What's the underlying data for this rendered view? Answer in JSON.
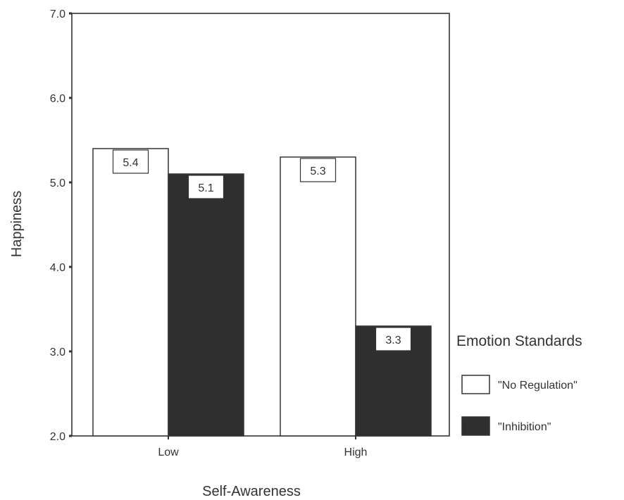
{
  "chart_data": {
    "type": "bar",
    "title": "",
    "xlabel": "Self-Awareness",
    "ylabel": "Happiness",
    "ylim": [
      2.0,
      7.0
    ],
    "yticks": [
      "2.0",
      "3.0",
      "4.0",
      "5.0",
      "6.0",
      "7.0"
    ],
    "categories": [
      "Low",
      "High"
    ],
    "series": [
      {
        "name": "\"No Regulation\"",
        "values": [
          5.4,
          5.3
        ],
        "labels": [
          "5.4",
          "5.3"
        ],
        "color": "#ffffff"
      },
      {
        "name": "\"Inhibition\"",
        "values": [
          5.1,
          3.3
        ],
        "labels": [
          "5.1",
          "3.3"
        ],
        "color": "#2f2f2f"
      }
    ],
    "legend": {
      "title": "Emotion Standards",
      "placement": "right"
    },
    "grid": false
  },
  "colors": {
    "axis": "#333333",
    "bar_stroke": "#333333",
    "text": "#333333"
  }
}
